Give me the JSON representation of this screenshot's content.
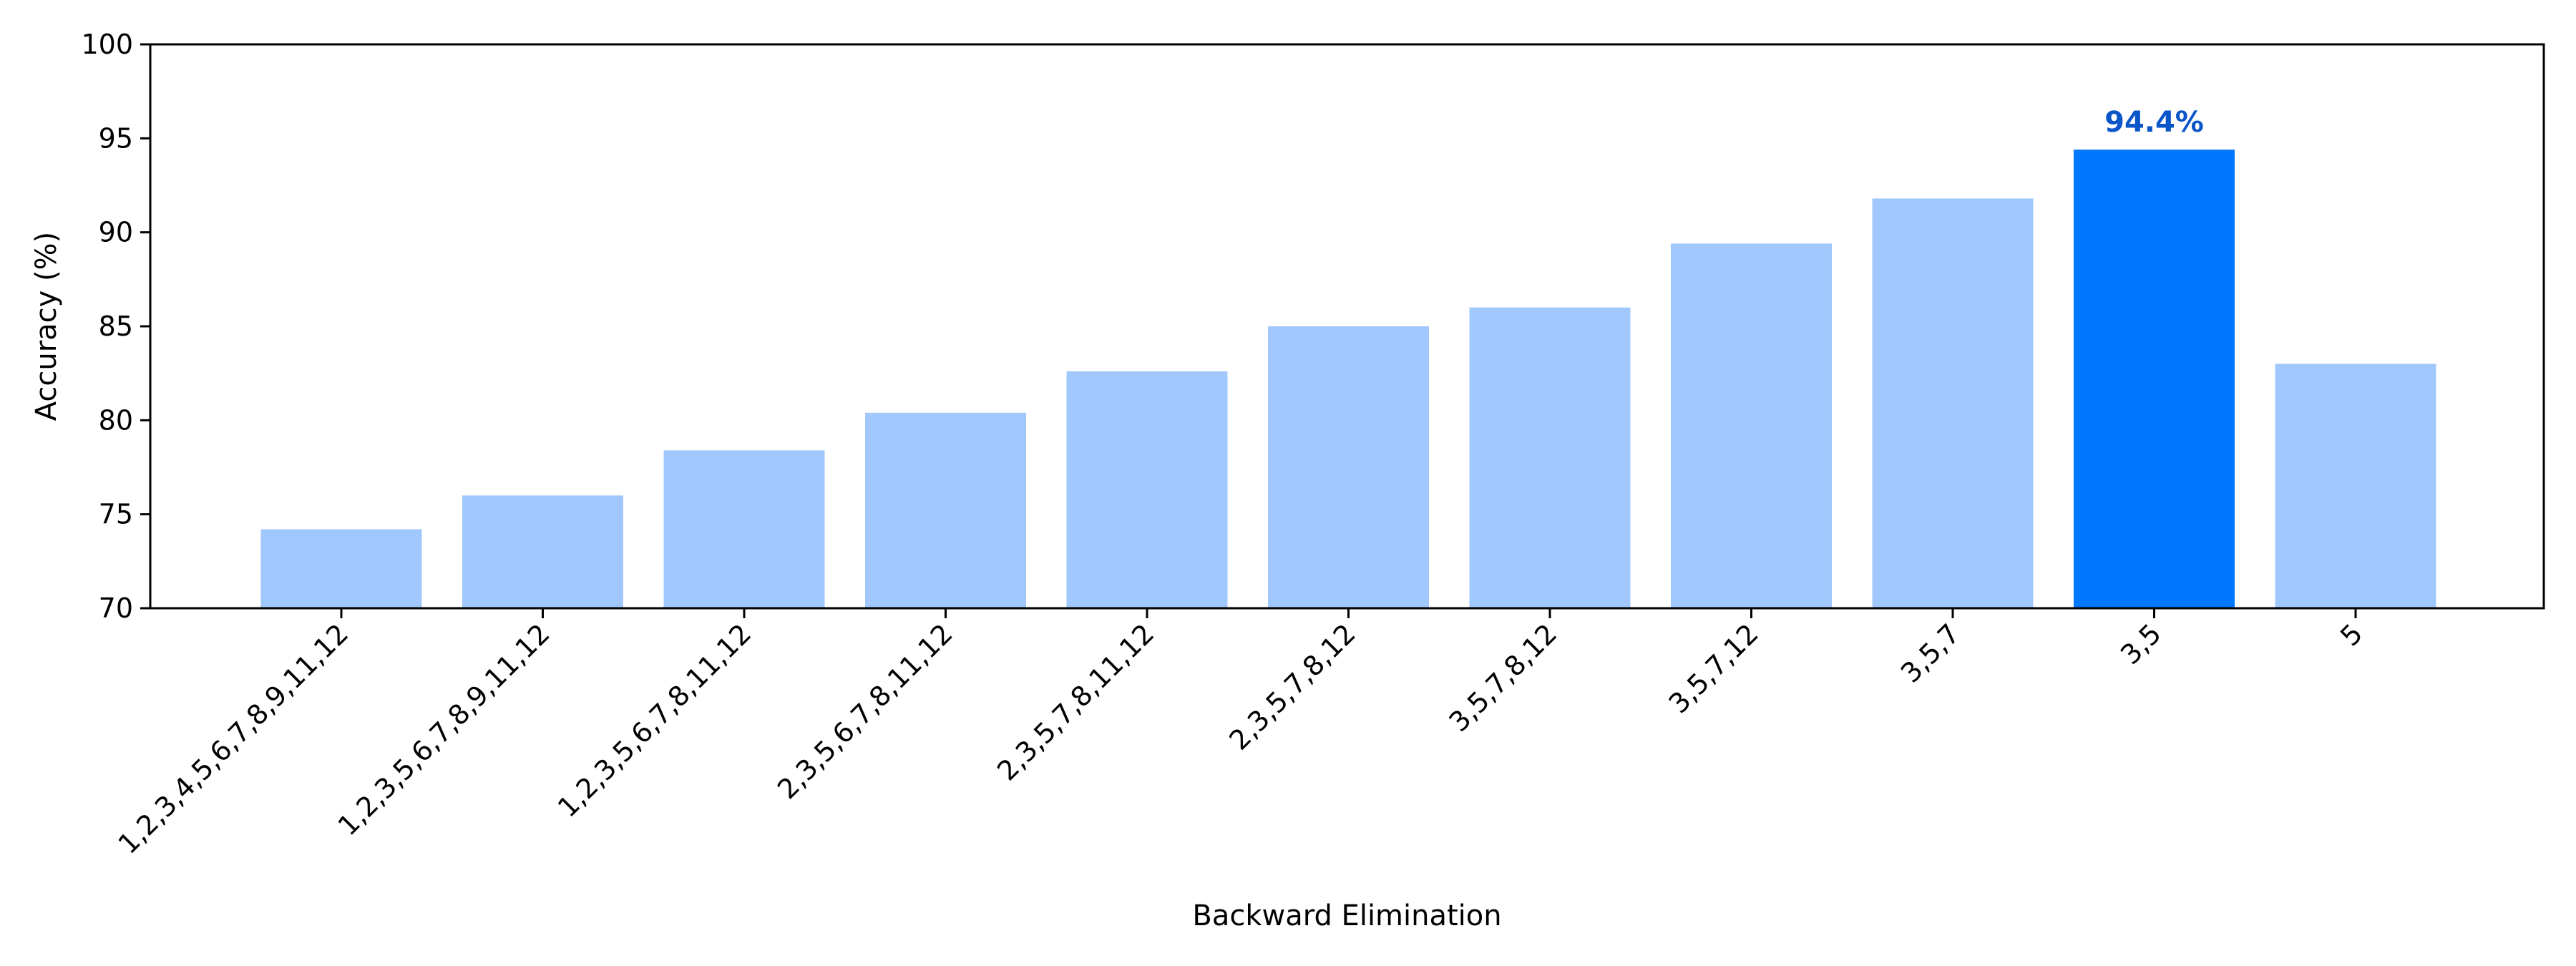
{
  "chart_data": {
    "type": "bar",
    "title": "",
    "xlabel": "Backward Elimination",
    "ylabel": "Accuracy (%)",
    "ylim": [
      70,
      100
    ],
    "yticks": [
      70,
      75,
      80,
      85,
      90,
      95,
      100
    ],
    "categories": [
      "1,2,3,4,5,6,7,8,9,11,12",
      "1,2,3,5,6,7,8,9,11,12",
      "1,2,3,5,6,7,8,11,12",
      "2,3,5,6,7,8,11,12",
      "2,3,5,7,8,11,12",
      "2,3,5,7,8,12",
      "3,5,7,8,12",
      "3,5,7,12",
      "3,5,7",
      "3,5",
      "5"
    ],
    "values": [
      74.2,
      76.0,
      78.4,
      80.4,
      82.6,
      85.0,
      86.0,
      89.4,
      91.8,
      94.4,
      83.0
    ],
    "highlight_index": 9,
    "highlight_label": "94.4%",
    "grid": false,
    "colors": {
      "bar": "#a0c8fc",
      "highlight": "#0077ff",
      "highlight_label": "#0a55c8",
      "axis": "#000000"
    }
  }
}
